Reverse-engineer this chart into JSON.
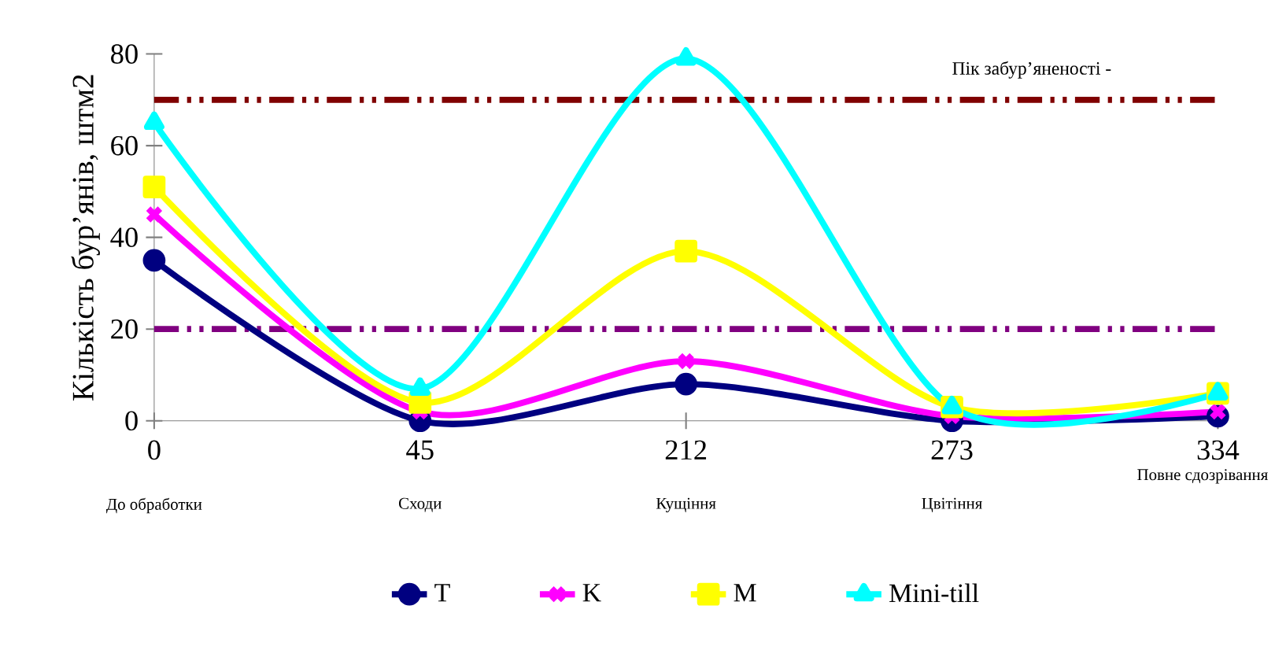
{
  "chart_data": {
    "type": "line",
    "ylabel": "Кількість бур’янів, штм2",
    "categories": [
      "0",
      "45",
      "212",
      "273",
      "334"
    ],
    "series": [
      {
        "name": "T",
        "color": "#000080",
        "marker": "circle",
        "values": [
          35,
          0,
          8,
          0,
          1
        ]
      },
      {
        "name": "K",
        "color": "#ff00ff",
        "marker": "cross",
        "values": [
          45,
          2,
          13,
          1,
          2
        ]
      },
      {
        "name": "M",
        "color": "#ffff00",
        "marker": "square",
        "values": [
          51,
          4,
          37,
          3,
          6
        ]
      },
      {
        "name": "Mini-till",
        "color": "#00ffff",
        "marker": "triangle",
        "values": [
          65,
          7,
          79,
          3,
          6
        ]
      }
    ],
    "ylim": [
      0,
      80
    ],
    "yticks": [
      0,
      20,
      40,
      60,
      80
    ],
    "ref_lines": [
      {
        "axis": "y",
        "value": 70,
        "color": "#800000",
        "line_style": "dashdotdotted"
      },
      {
        "axis": "y",
        "value": 20,
        "color": "#800080",
        "line_style": "dashdotdotted"
      }
    ],
    "annotations": [
      "До обработки",
      "Сходи",
      "Кущіння",
      "Цвітіння",
      "Повне сдозрівання",
      "Пік забур’яненості -"
    ],
    "legend": "bottom",
    "grid": false,
    "line_style": "solid"
  }
}
